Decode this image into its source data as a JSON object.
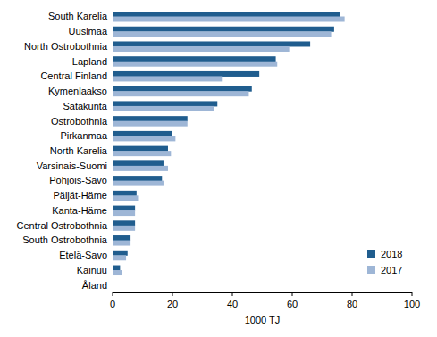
{
  "chart_data": {
    "type": "bar",
    "orientation": "horizontal",
    "categories": [
      "South Karelia",
      "Uusimaa",
      "North Ostrobothnia",
      "Lapland",
      "Central Finland",
      "Kymenlaakso",
      "Satakunta",
      "Ostrobothnia",
      "Pirkanmaa",
      "North Karelia",
      "Varsinais-Suomi",
      "Pohjois-Savo",
      "Päijät-Häme",
      "Kanta-Häme",
      "Central Ostrobothnia",
      "South Ostrobothnia",
      "Etelä-Savo",
      "Kainuu",
      "Åland"
    ],
    "series": [
      {
        "name": "2018",
        "color": "#205d8e",
        "values": [
          76,
          74,
          66,
          54.5,
          49,
          46.5,
          35,
          25,
          20,
          18.5,
          17,
          16.5,
          8,
          7.5,
          7.5,
          6,
          5,
          2.5,
          0.1
        ]
      },
      {
        "name": "2017",
        "color": "#9eb6d6",
        "values": [
          77.5,
          73,
          59,
          55,
          36.5,
          45.5,
          34,
          25,
          21,
          19.5,
          18.5,
          17,
          8.5,
          7.5,
          7.5,
          6,
          4.5,
          3,
          0.1
        ]
      }
    ],
    "x_label": "1000 TJ",
    "xlim": [
      0,
      100
    ],
    "xticks": [
      0,
      20,
      40,
      60,
      80,
      100
    ],
    "grid": false,
    "legend": "lower right"
  }
}
